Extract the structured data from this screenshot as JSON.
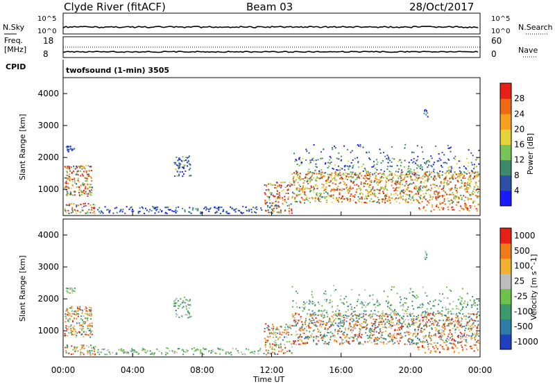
{
  "header": {
    "radar": "Clyde River (fitACF)",
    "beam": "Beam 03",
    "date": "28/Oct/2017"
  },
  "top_panel": {
    "left_label": "N.Sky",
    "left_ticks": [
      "10^5",
      "10^0"
    ],
    "right_label": "N.Search",
    "right_ticks": [
      "10^5",
      "10^0"
    ]
  },
  "freq_panel": {
    "left_label_1": "Freq.",
    "left_label_2": "[MHz]",
    "left_ticks": [
      "18",
      "8"
    ],
    "right_label": "Nave",
    "right_ticks": [
      "60",
      "0"
    ]
  },
  "cpid": {
    "label": "CPID",
    "text": "twofsound (1-min) 3505"
  },
  "chart_data": [
    {
      "type": "heatmap",
      "title": "Power",
      "ylabel": "Slant Range [km]",
      "colorbar_label": "Power [dB]",
      "colorbar_ticks": [
        "4",
        "8",
        "12",
        "16",
        "20",
        "24",
        "28"
      ],
      "colorbar_colors": [
        "#1a1aff",
        "#2e4fa8",
        "#3c8a6e",
        "#78c25a",
        "#e6d23c",
        "#f5a020",
        "#f06a14",
        "#e62014"
      ],
      "yticks": [
        "1000",
        "2000",
        "3000",
        "4000"
      ],
      "ylim": [
        180,
        4500
      ],
      "x_ticks": [
        "00:00",
        "04:00",
        "08:00",
        "12:00",
        "16:00",
        "20:00",
        "00:00"
      ]
    },
    {
      "type": "heatmap",
      "title": "Velocity",
      "ylabel": "Slant Range [km]",
      "colorbar_label": "Velocity [m s^-1]",
      "colorbar_ticks": [
        "1000",
        "500",
        "100",
        "25",
        "-25",
        "-100",
        "-500",
        "-1000"
      ],
      "colorbar_colors": [
        "#1f3fbf",
        "#2e7aa8",
        "#3c9a6a",
        "#6cc24a",
        "#bdbdbd",
        "#f0b030",
        "#f07a1a",
        "#e62014"
      ],
      "yticks": [
        "1000",
        "2000",
        "3000",
        "4000"
      ],
      "ylim": [
        180,
        4500
      ],
      "xlabel": "Time UT",
      "x_ticks": [
        "00:00",
        "04:00",
        "08:00",
        "12:00",
        "16:00",
        "20:00",
        "00:00"
      ]
    }
  ]
}
